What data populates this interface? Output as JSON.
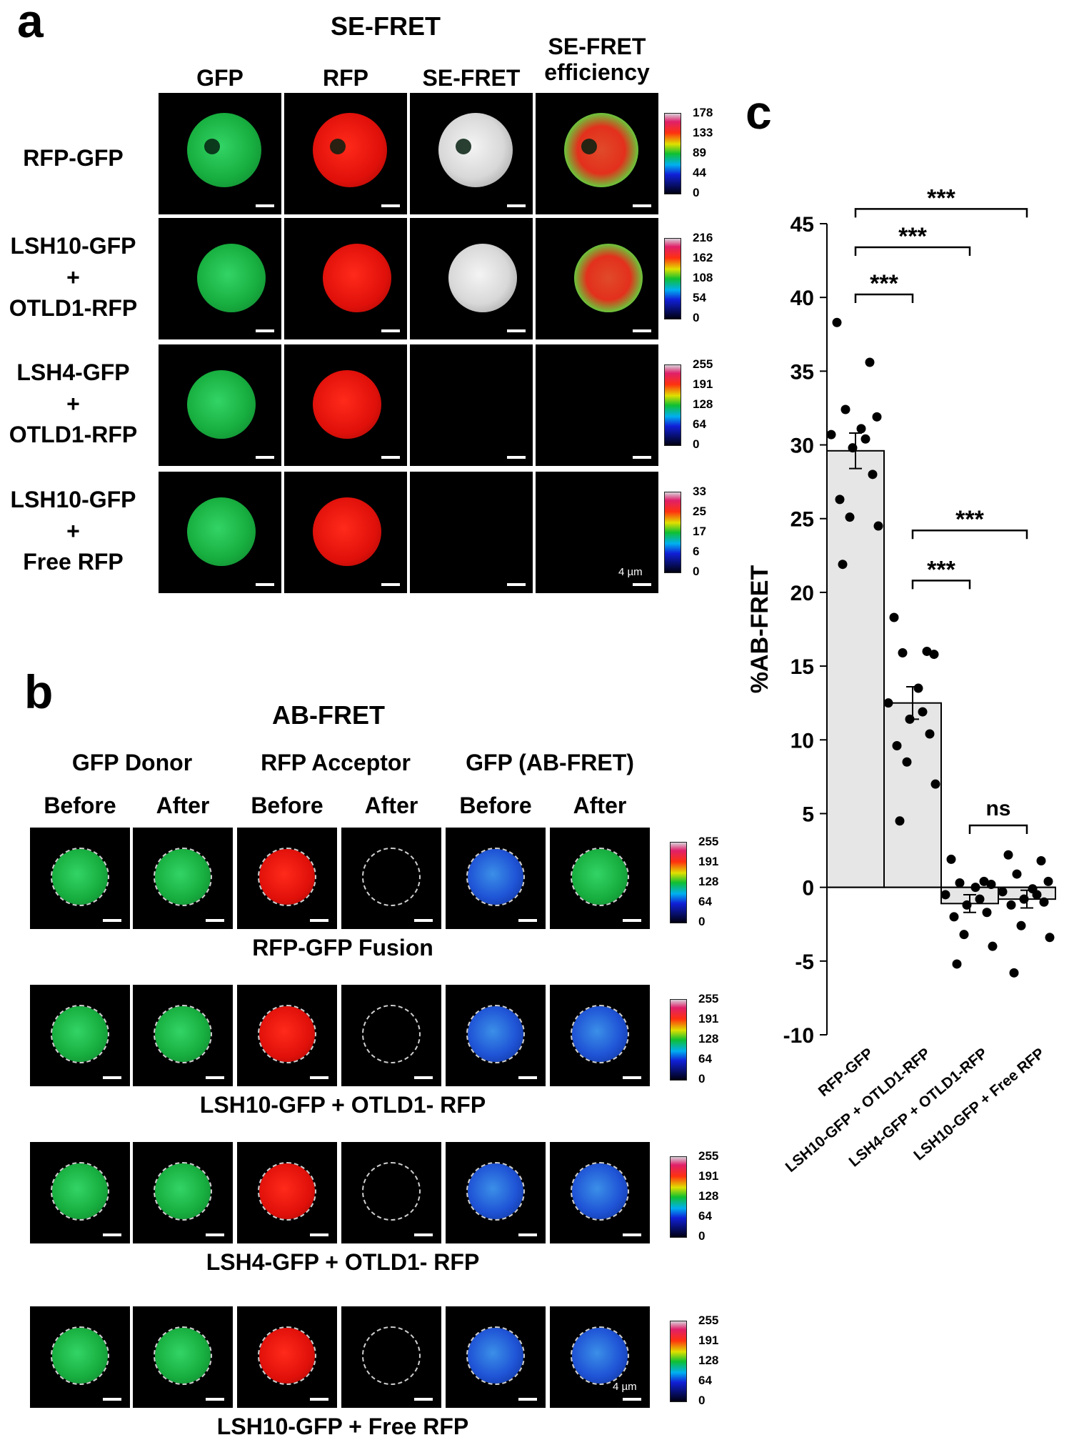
{
  "panel_a": {
    "letter": "a",
    "title": "SE-FRET",
    "columns": [
      "GFP",
      "RFP",
      "SE-FRET",
      "SE-FRET\nefficiency"
    ],
    "rows": [
      {
        "label": "RFP-GFP",
        "ticks": [
          "178",
          "133",
          "89",
          "44",
          "0"
        ]
      },
      {
        "label": "LSH10-GFP\n+\nOTLD1-RFP",
        "ticks": [
          "216",
          "162",
          "108",
          "54",
          "0"
        ]
      },
      {
        "label": "LSH4-GFP\n+\nOTLD1-RFP",
        "ticks": [
          "255",
          "191",
          "128",
          "64",
          "0"
        ]
      },
      {
        "label": "LSH10-GFP\n+\nFree RFP",
        "ticks": [
          "33",
          "25",
          "17",
          "6",
          "0"
        ]
      }
    ],
    "scale_label": "4 µm"
  },
  "panel_b": {
    "letter": "b",
    "title": "AB-FRET",
    "groups": [
      "GFP Donor",
      "RFP Acceptor",
      "GFP (AB-FRET)"
    ],
    "subcolumns": [
      "Before",
      "After",
      "Before",
      "After",
      "Before",
      "After"
    ],
    "rows": [
      {
        "caption": "RFP-GFP Fusion",
        "ticks": [
          "255",
          "191",
          "128",
          "64",
          "0"
        ]
      },
      {
        "caption": "LSH10-GFP + OTLD1- RFP",
        "ticks": [
          "255",
          "191",
          "128",
          "64",
          "0"
        ]
      },
      {
        "caption": "LSH4-GFP + OTLD1- RFP",
        "ticks": [
          "255",
          "191",
          "128",
          "64",
          "0"
        ]
      },
      {
        "caption": "LSH10-GFP + Free RFP",
        "ticks": [
          "255",
          "191",
          "128",
          "64",
          "0"
        ]
      }
    ],
    "scale_label": "4 µm"
  },
  "panel_c": {
    "letter": "c",
    "chart_data": {
      "type": "bar",
      "categories": [
        "RFP-GFP",
        "LSH10-GFP + OTLD1-RFP",
        "LSH4-GFP + OTLD1-RFP",
        "LSH10-GFP + Free RFP"
      ],
      "values": [
        29.6,
        12.5,
        -1.1,
        -0.8
      ],
      "errors": [
        1.2,
        1.1,
        0.6,
        0.6
      ],
      "points": [
        [
          38.3,
          35.6,
          32.4,
          31.9,
          31.1,
          30.7,
          30.4,
          29.8,
          28.0,
          26.3,
          25.1,
          24.5,
          21.9
        ],
        [
          18.3,
          16.0,
          15.9,
          15.8,
          13.5,
          12.5,
          11.9,
          11.4,
          10.4,
          9.6,
          8.5,
          7.0,
          4.5
        ],
        [
          1.9,
          0.4,
          0.3,
          0.2,
          0.0,
          -0.5,
          -0.8,
          -1.2,
          -1.7,
          -2.0,
          -3.2,
          -4.0,
          -5.2
        ],
        [
          2.2,
          1.8,
          0.9,
          0.4,
          -0.1,
          -0.3,
          -0.5,
          -0.8,
          -1.0,
          -1.2,
          -2.6,
          -3.4,
          -5.8
        ]
      ],
      "ylabel": "%AB-FRET",
      "ylim": [
        -10,
        45
      ],
      "yticks": [
        45,
        40,
        35,
        30,
        25,
        20,
        15,
        10,
        5,
        0,
        -5,
        -10
      ],
      "brackets": [
        {
          "from": 0,
          "to": 1,
          "label": "***",
          "y": 40.2
        },
        {
          "from": 0,
          "to": 2,
          "label": "***",
          "y": 43.4
        },
        {
          "from": 0,
          "to": 3,
          "label": "***",
          "y": 46.0
        },
        {
          "from": 1,
          "to": 2,
          "label": "***",
          "y": 20.8
        },
        {
          "from": 1,
          "to": 3,
          "label": "***",
          "y": 24.2
        },
        {
          "from": 2,
          "to": 3,
          "label": "ns",
          "y": 4.2
        }
      ],
      "bar_color": "#e6e6e6",
      "grid": false,
      "legend": "none"
    }
  }
}
